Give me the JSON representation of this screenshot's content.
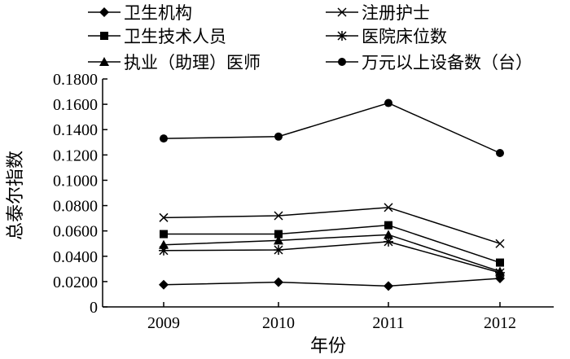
{
  "chart_data": {
    "type": "line",
    "title": "",
    "xlabel": "年份",
    "ylabel": "总泰尔指数",
    "x": [
      "2009",
      "2010",
      "2011",
      "2012"
    ],
    "ylim": [
      0,
      0.18
    ],
    "yticks": [
      "0",
      "0.0200",
      "0.0400",
      "0.0600",
      "0.0800",
      "0.1000",
      "0.1200",
      "0.1400",
      "0.1600",
      "0.1800"
    ],
    "grid": false,
    "legend_position": "top",
    "series": [
      {
        "name": "卫生机构",
        "marker": "diamond",
        "values": [
          0.0175,
          0.0195,
          0.0165,
          0.0225
        ]
      },
      {
        "name": "注册护士",
        "marker": "x",
        "values": [
          0.0705,
          0.072,
          0.0785,
          0.05
        ]
      },
      {
        "name": "卫生技术人员",
        "marker": "square",
        "values": [
          0.0575,
          0.0575,
          0.0645,
          0.035
        ]
      },
      {
        "name": "医院床位数",
        "marker": "asterisk",
        "values": [
          0.0445,
          0.045,
          0.0515,
          0.027
        ]
      },
      {
        "name": "执业（助理）医师",
        "marker": "triangle",
        "values": [
          0.049,
          0.0525,
          0.057,
          0.028
        ]
      },
      {
        "name": "万元以上设备数（台）",
        "marker": "circle",
        "values": [
          0.133,
          0.1345,
          0.161,
          0.1215
        ]
      }
    ]
  }
}
